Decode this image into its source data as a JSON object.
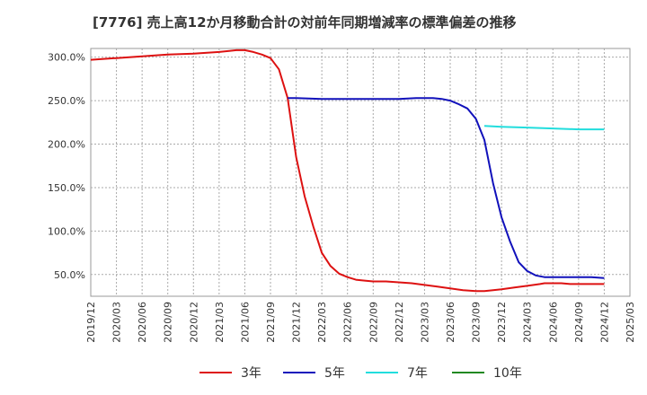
{
  "chart_data": {
    "type": "line",
    "title": "[7776]  売上高12か月移動合計の対前年同期増減率の標準偏差の推移",
    "xlabel": "",
    "ylabel": "",
    "x": [
      "2019/12",
      "2020/03",
      "2020/06",
      "2020/09",
      "2020/12",
      "2021/03",
      "2021/06",
      "2021/09",
      "2021/12",
      "2022/03",
      "2022/06",
      "2022/09",
      "2022/12",
      "2023/03",
      "2023/06",
      "2023/09",
      "2023/12",
      "2024/03",
      "2024/06",
      "2024/09",
      "2024/12",
      "2025/03"
    ],
    "ylim": [
      25,
      310
    ],
    "yticks": [
      50,
      100,
      150,
      200,
      250,
      300
    ],
    "ytick_labels": [
      "50.0%",
      "100.0%",
      "150.0%",
      "200.0%",
      "250.0%",
      "300.0%"
    ],
    "grid": true,
    "legend_position": "bottom",
    "series": [
      {
        "name": "3年",
        "color": "#dd1111",
        "points": [
          [
            0,
            297
          ],
          [
            1,
            299
          ],
          [
            2,
            301
          ],
          [
            3,
            303
          ],
          [
            4,
            304
          ],
          [
            5,
            306
          ],
          [
            5.67,
            308
          ],
          [
            6,
            308
          ],
          [
            6.33,
            306
          ],
          [
            6.67,
            303
          ],
          [
            7,
            299
          ],
          [
            7.33,
            286
          ],
          [
            7.67,
            253
          ],
          [
            8,
            185
          ],
          [
            8.33,
            140
          ],
          [
            8.67,
            105
          ],
          [
            9,
            75
          ],
          [
            9.33,
            60
          ],
          [
            9.67,
            51
          ],
          [
            10,
            47
          ],
          [
            10.33,
            44
          ],
          [
            10.67,
            43
          ],
          [
            11,
            42
          ],
          [
            11.5,
            42
          ],
          [
            12,
            41
          ],
          [
            12.5,
            40
          ],
          [
            13,
            38
          ],
          [
            13.5,
            36
          ],
          [
            14,
            34
          ],
          [
            14.5,
            32
          ],
          [
            15,
            31
          ],
          [
            15.33,
            31
          ],
          [
            15.67,
            32
          ],
          [
            16,
            33
          ],
          [
            16.5,
            35
          ],
          [
            17,
            37
          ],
          [
            17.5,
            39
          ],
          [
            17.67,
            40
          ],
          [
            18,
            40
          ],
          [
            18.33,
            40
          ],
          [
            18.67,
            39
          ],
          [
            19,
            39
          ],
          [
            19.5,
            39
          ],
          [
            20,
            39
          ]
        ]
      },
      {
        "name": "5年",
        "color": "#1111bb",
        "points": [
          [
            7.67,
            253
          ],
          [
            8,
            253
          ],
          [
            9,
            252
          ],
          [
            10,
            252
          ],
          [
            11,
            252
          ],
          [
            12,
            252
          ],
          [
            12.67,
            253
          ],
          [
            13,
            253
          ],
          [
            13.33,
            253
          ],
          [
            13.67,
            252
          ],
          [
            14,
            250
          ],
          [
            14.33,
            246
          ],
          [
            14.67,
            241
          ],
          [
            15,
            229
          ],
          [
            15.33,
            205
          ],
          [
            15.67,
            155
          ],
          [
            16,
            116
          ],
          [
            16.33,
            88
          ],
          [
            16.67,
            64
          ],
          [
            17,
            54
          ],
          [
            17.33,
            49
          ],
          [
            17.67,
            47
          ],
          [
            18,
            47
          ],
          [
            19,
            47
          ],
          [
            19.5,
            47
          ],
          [
            20,
            46
          ]
        ]
      },
      {
        "name": "7年",
        "color": "#22dddd",
        "points": [
          [
            15.33,
            221
          ],
          [
            16,
            220
          ],
          [
            17,
            219
          ],
          [
            18,
            218
          ],
          [
            19,
            217
          ],
          [
            20,
            217
          ]
        ]
      },
      {
        "name": "10年",
        "color": "#228822",
        "points": []
      }
    ]
  }
}
